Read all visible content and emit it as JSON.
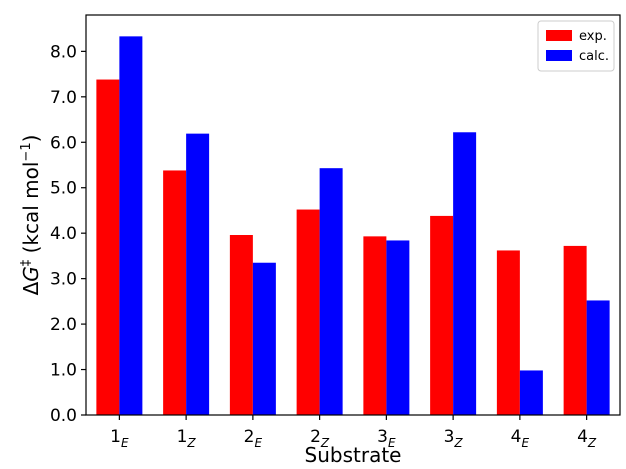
{
  "chart_data": {
    "type": "bar",
    "categories": [
      {
        "base": "1",
        "sub": "E"
      },
      {
        "base": "1",
        "sub": "Z"
      },
      {
        "base": "2",
        "sub": "E"
      },
      {
        "base": "2",
        "sub": "Z"
      },
      {
        "base": "3",
        "sub": "E"
      },
      {
        "base": "3",
        "sub": "Z"
      },
      {
        "base": "4",
        "sub": "E"
      },
      {
        "base": "4",
        "sub": "Z"
      }
    ],
    "series": [
      {
        "name": "exp.",
        "color": "#ff0000",
        "values": [
          7.38,
          5.38,
          3.96,
          4.52,
          3.93,
          4.38,
          3.62,
          3.72
        ]
      },
      {
        "name": "calc.",
        "color": "#0000ff",
        "values": [
          8.33,
          6.19,
          3.35,
          5.43,
          3.84,
          6.22,
          0.98,
          2.52
        ]
      }
    ],
    "xlabel": "Substrate",
    "ylabel": {
      "prefix": "ΔG",
      "superscript": "‡",
      "unit": " (kcal mol",
      "unit_sup": "−1",
      "close": ")"
    },
    "ylim": [
      0,
      8.8
    ],
    "yticks": [
      "0.0",
      "1.0",
      "2.0",
      "3.0",
      "4.0",
      "5.0",
      "6.0",
      "7.0",
      "8.0"
    ],
    "legend_position": "top-right",
    "grid": false
  }
}
